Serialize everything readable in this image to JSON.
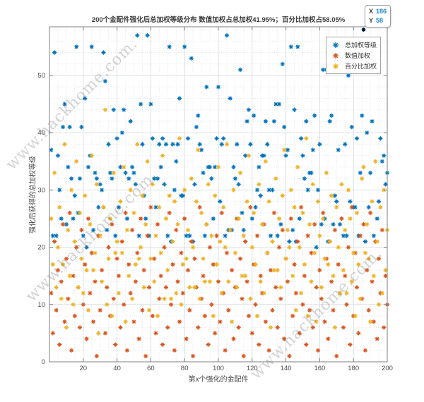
{
  "title": "200个金配件强化后总加权等级分布   数值加权占总加权41.95%；百分比加权占58.05%",
  "watermark": {
    "text": "www.hackhome.com."
  },
  "datatip": {
    "x_label": "X",
    "x_value": "186",
    "y_label": "Y",
    "y_value": "58"
  },
  "legend": {
    "items": [
      {
        "label": "总加权等级",
        "color": "#0072BD"
      },
      {
        "label": "数值加权",
        "color": "#D95319"
      },
      {
        "label": "百分比加权",
        "color": "#EDB120"
      }
    ]
  },
  "chart_data": {
    "type": "scatter",
    "title": "200个金配件强化后总加权等级分布   数值加权占总加权41.95%；百分比加权占58.05%",
    "xlabel": "第x个强化的金配件",
    "ylabel": "强化后获得的总加权等级",
    "xlim": [
      0,
      200
    ],
    "ylim": [
      0,
      58.5
    ],
    "x_ticks": [
      20,
      40,
      60,
      80,
      100,
      120,
      140,
      160,
      180,
      200
    ],
    "y_ticks": [
      0,
      10,
      20,
      30,
      40,
      50
    ],
    "grid": "major solid + minor dotted",
    "legend_position": "top-right inside",
    "marker": "asterisk",
    "x_rule": {
      "start": 1,
      "end": 200,
      "step": 1
    },
    "highlight_point": {
      "x": 186,
      "y": 58
    },
    "series": [
      {
        "name": "总加权等级",
        "color": "#0072BD",
        "y": [
          37,
          22,
          54,
          22,
          36,
          30,
          25,
          41,
          45,
          24,
          34,
          41,
          32,
          25,
          29,
          55,
          26,
          32,
          41,
          22,
          46,
          20,
          34,
          36,
          55,
          23,
          33,
          32,
          27,
          31,
          30,
          54,
          49,
          23,
          38,
          33,
          32,
          44,
          22,
          39,
          27,
          34,
          40,
          44,
          33,
          25,
          32,
          42,
          34,
          33,
          31,
          57,
          22,
          45,
          38,
          29,
          25,
          57,
          22,
          45,
          39,
          32,
          27,
          32,
          38,
          34,
          39,
          31,
          38,
          22,
          55,
          21,
          38,
          30,
          35,
          38,
          46,
          29,
          29,
          55,
          22,
          39,
          22,
          53,
          21,
          31,
          41,
          43,
          38,
          37,
          33,
          22,
          48,
          34,
          34,
          32,
          25,
          34,
          39,
          48,
          28,
          38,
          39,
          22,
          57,
          23,
          46,
          23,
          34,
          32,
          38,
          31,
          51,
          26,
          23,
          36,
          42,
          44,
          38,
          25,
          43,
          27,
          30,
          34,
          29,
          36,
          36,
          42,
          38,
          30,
          22,
          30,
          42,
          45,
          22,
          45,
          24,
          52,
          41,
          36,
          37,
          21,
          55,
          23,
          44,
          21,
          55,
          25,
          39,
          36,
          32,
          42,
          30,
          33,
          33,
          37,
          43,
          20,
          30,
          38,
          24,
          51,
          25,
          51,
          21,
          42,
          43,
          24,
          29,
          28,
          37,
          24,
          56,
          22,
          38,
          22,
          50,
          28,
          41,
          27,
          27,
          39,
          22,
          33,
          43,
          58,
          21,
          40,
          27,
          33,
          42,
          22,
          56,
          25,
          28,
          39,
          35,
          36,
          31,
          33
        ]
      },
      {
        "name": "数值加权",
        "color": "#D95319",
        "y": [
          12,
          5,
          21,
          9,
          16,
          3,
          14,
          24,
          7,
          18,
          11,
          26,
          2,
          15,
          8,
          20,
          13,
          6,
          23,
          10,
          17,
          4,
          25,
          12,
          19,
          7,
          14,
          1,
          22,
          9,
          16,
          27,
          5,
          13,
          20,
          8,
          24,
          11,
          3,
          18,
          15,
          6,
          21,
          10,
          26,
          2,
          17,
          12,
          23,
          7,
          14,
          19,
          4,
          25,
          9,
          16,
          1,
          22,
          13,
          27,
          8,
          18,
          5,
          24,
          11,
          15,
          3,
          20,
          13,
          6,
          26,
          10,
          17,
          2,
          23,
          14,
          7,
          19,
          12,
          25,
          4,
          16,
          9,
          21,
          1,
          18,
          13,
          6,
          27,
          11,
          15,
          8,
          24,
          3,
          20,
          10,
          17,
          5,
          22,
          14,
          7,
          26,
          12,
          2,
          19,
          9,
          23,
          16,
          4,
          13,
          25,
          6,
          18,
          11,
          1,
          21,
          14,
          8,
          27,
          5,
          17,
          10,
          22,
          3,
          15,
          12,
          24,
          7,
          19,
          2,
          16,
          9,
          26,
          13,
          6,
          20,
          11,
          23,
          4,
          18,
          14,
          1,
          25,
          8,
          17,
          12,
          21,
          5,
          27,
          10,
          15,
          3,
          22,
          9,
          19,
          6,
          24,
          13,
          2,
          16,
          11,
          26,
          7,
          18,
          4,
          21,
          14,
          9,
          23,
          1,
          17,
          12,
          25,
          6,
          15,
          10,
          20,
          3,
          27,
          8,
          19,
          13,
          5,
          22,
          11,
          24,
          2,
          16,
          9,
          26,
          14,
          7,
          21,
          4,
          18,
          12,
          23,
          6,
          15,
          10
        ]
      },
      {
        "name": "百分比加权",
        "color": "#EDB120",
        "y": [
          25,
          17,
          33,
          13,
          20,
          27,
          11,
          17,
          38,
          6,
          23,
          15,
          30,
          10,
          21,
          35,
          13,
          26,
          18,
          12,
          29,
          16,
          9,
          24,
          36,
          16,
          19,
          31,
          5,
          22,
          14,
          27,
          44,
          10,
          18,
          25,
          8,
          33,
          19,
          21,
          12,
          28,
          19,
          34,
          7,
          23,
          15,
          30,
          11,
          26,
          17,
          38,
          18,
          20,
          29,
          13,
          24,
          35,
          9,
          18,
          31,
          14,
          22,
          8,
          27,
          19,
          36,
          11,
          25,
          16,
          29,
          11,
          21,
          28,
          12,
          24,
          39,
          10,
          17,
          30,
          18,
          23,
          13,
          32,
          20,
          13,
          28,
          37,
          11,
          26,
          18,
          14,
          24,
          31,
          14,
          22,
          8,
          29,
          17,
          34,
          21,
          12,
          27,
          20,
          38,
          14,
          23,
          7,
          30,
          19,
          13,
          25,
          33,
          15,
          22,
          15,
          28,
          36,
          11,
          20,
          26,
          17,
          8,
          31,
          14,
          24,
          12,
          35,
          19,
          28,
          6,
          21,
          16,
          32,
          16,
          25,
          13,
          29,
          37,
          18,
          23,
          20,
          30,
          15,
          27,
          9,
          34,
          20,
          12,
          26,
          17,
          39,
          8,
          24,
          14,
          31,
          19,
          7,
          28,
          22,
          13,
          25,
          18,
          33,
          17,
          21,
          29,
          15,
          6,
          27,
          20,
          12,
          31,
          16,
          23,
          12,
          30,
          25,
          14,
          19,
          8,
          26,
          17,
          11,
          32,
          34,
          19,
          24,
          18,
          7,
          28,
          15,
          35,
          21,
          10,
          27,
          12,
          30,
          16,
          23
        ]
      }
    ]
  }
}
